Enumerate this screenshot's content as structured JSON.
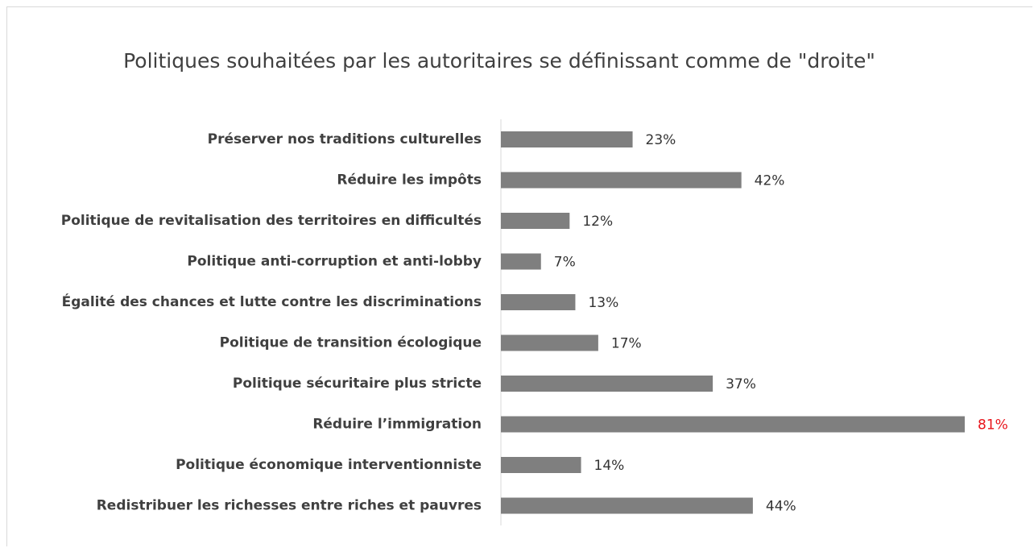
{
  "chart_data": {
    "type": "bar",
    "orientation": "horizontal",
    "title": "Politiques souhaitées par les autoritaires se définissant comme de \"droite\"",
    "categories": [
      "Préserver nos traditions culturelles",
      "Réduire les impôts",
      "Politique de revitalisation des territoires en difficultés",
      "Politique anti-corruption et anti-lobby",
      "Égalité des chances et lutte contre les discriminations",
      "Politique de transition écologique",
      "Politique sécuritaire plus stricte",
      "Réduire l’immigration",
      "Politique économique interventionniste",
      "Redistribuer les richesses entre riches et pauvres"
    ],
    "values": [
      23,
      42,
      12,
      7,
      13,
      17,
      37,
      81,
      14,
      44
    ],
    "value_labels": [
      "23%",
      "42%",
      "12%",
      "7%",
      "13%",
      "17%",
      "37%",
      "81%",
      "14%",
      "44%"
    ],
    "color": "#7f7f7f",
    "value_label_colors": [
      "#333333",
      "#333333",
      "#333333",
      "#333333",
      "#333333",
      "#333333",
      "#333333",
      "#e8141b",
      "#333333",
      "#333333"
    ]
  }
}
